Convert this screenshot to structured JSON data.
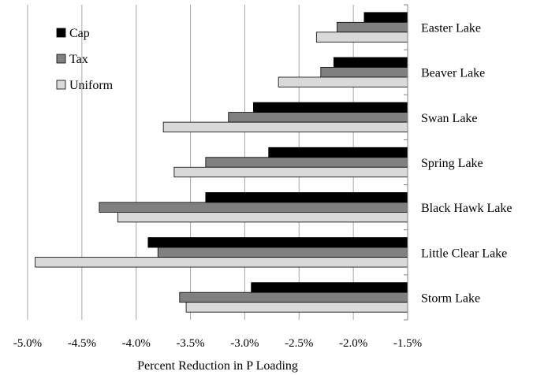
{
  "chart_data": {
    "type": "bar",
    "orientation": "horizontal",
    "title": "",
    "xlabel": "Percent Reduction in P Loading",
    "ylabel": "",
    "xlim": [
      -5.0,
      -1.5
    ],
    "x_ticks": [
      -5.0,
      -4.5,
      -4.0,
      -3.5,
      -3.0,
      -2.5,
      -2.0,
      -1.5
    ],
    "x_tick_labels": [
      "-5.0%",
      "-4.5%",
      "-4.0%",
      "-3.5%",
      "-3.0%",
      "-2.5%",
      "-2.0%",
      "-1.5%"
    ],
    "grid": "vertical",
    "legend_position": "top-left",
    "categories": [
      "Easter Lake",
      "Beaver Lake",
      "Swan Lake",
      "Spring Lake",
      "Black Hawk Lake",
      "Little Clear Lake",
      "Storm Lake"
    ],
    "series": [
      {
        "name": "Cap",
        "color": "#000000",
        "values": [
          -1.9,
          -2.18,
          -2.92,
          -2.78,
          -3.36,
          -3.89,
          -2.94
        ]
      },
      {
        "name": "Tax",
        "color": "#808080",
        "values": [
          -2.15,
          -2.3,
          -3.15,
          -3.36,
          -4.34,
          -3.8,
          -3.6
        ]
      },
      {
        "name": "Uniform",
        "color": "#d9d9d9",
        "values": [
          -2.34,
          -2.69,
          -3.75,
          -3.65,
          -4.17,
          -4.93,
          -3.54
        ]
      }
    ]
  }
}
